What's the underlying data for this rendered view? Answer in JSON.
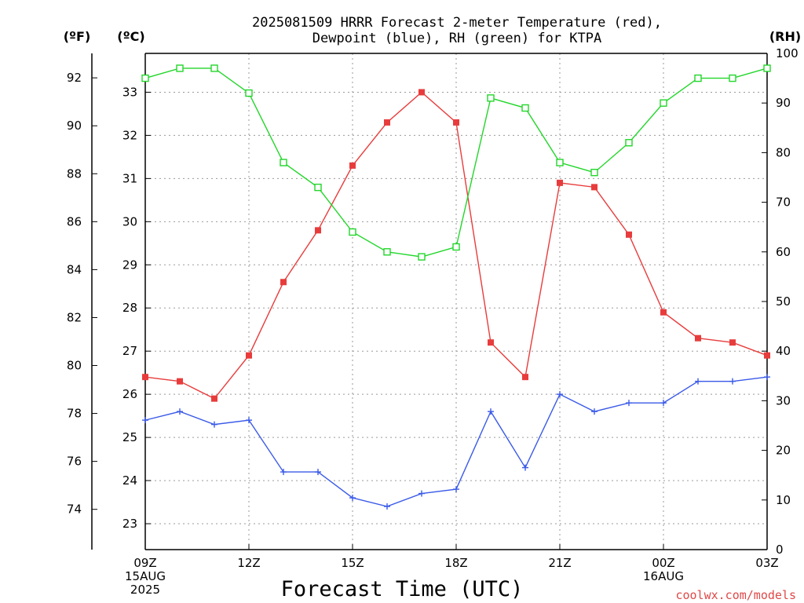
{
  "chart_data": {
    "type": "line",
    "title_line1": "2025081509 HRRR Forecast 2-meter Temperature (red),",
    "title_line2": "Dewpoint (blue), RH (green) for KTPA",
    "xlabel": "Forecast Time (UTC)",
    "watermark": "coolwx.com/models",
    "unit_f": "(ºF)",
    "unit_c": "(ºC)",
    "unit_rh": "(RH)",
    "x_hours": [
      0,
      1,
      2,
      3,
      4,
      5,
      6,
      7,
      8,
      9,
      10,
      11,
      12,
      13,
      14,
      15,
      16,
      17,
      18
    ],
    "x_ticks": [
      {
        "hour": 0,
        "lines": [
          "09Z",
          "15AUG",
          "2025"
        ]
      },
      {
        "hour": 3,
        "lines": [
          "12Z"
        ]
      },
      {
        "hour": 6,
        "lines": [
          "15Z"
        ]
      },
      {
        "hour": 9,
        "lines": [
          "18Z"
        ]
      },
      {
        "hour": 12,
        "lines": [
          "21Z"
        ]
      },
      {
        "hour": 15,
        "lines": [
          "00Z",
          "16AUG"
        ]
      },
      {
        "hour": 18,
        "lines": [
          "03Z"
        ]
      }
    ],
    "celsius_range": [
      22.4,
      33.9
    ],
    "celsius_ticks": [
      23,
      24,
      25,
      26,
      27,
      28,
      29,
      30,
      31,
      32,
      33
    ],
    "fahrenheit_ticks": [
      74,
      76,
      78,
      80,
      82,
      84,
      86,
      88,
      90,
      92
    ],
    "rh_range": [
      0,
      100
    ],
    "rh_ticks": [
      0,
      10,
      20,
      30,
      40,
      50,
      60,
      70,
      80,
      90,
      100
    ],
    "grid": true,
    "series": [
      {
        "name": "Temperature",
        "axis": "celsius",
        "color": "#e83c3c",
        "marker": "filled-square",
        "values": [
          26.4,
          26.3,
          25.9,
          26.9,
          28.6,
          29.8,
          31.3,
          32.3,
          33.0,
          32.3,
          27.2,
          26.4,
          30.9,
          30.8,
          29.7,
          27.9,
          27.3,
          27.2,
          26.9
        ]
      },
      {
        "name": "Dewpoint",
        "axis": "celsius",
        "color": "#3a5ae8",
        "marker": "plus",
        "values": [
          25.4,
          25.6,
          25.3,
          25.4,
          24.2,
          24.2,
          23.6,
          23.4,
          23.7,
          23.8,
          25.6,
          24.3,
          26.0,
          25.6,
          25.8,
          25.8,
          26.3,
          26.3,
          26.4
        ]
      },
      {
        "name": "RH",
        "axis": "rh",
        "color": "#22d62a",
        "marker": "open-square",
        "values": [
          95,
          97,
          97,
          92,
          78,
          73,
          64,
          60,
          59,
          61,
          91,
          89,
          78,
          76,
          82,
          90,
          95,
          95,
          97
        ]
      }
    ]
  }
}
